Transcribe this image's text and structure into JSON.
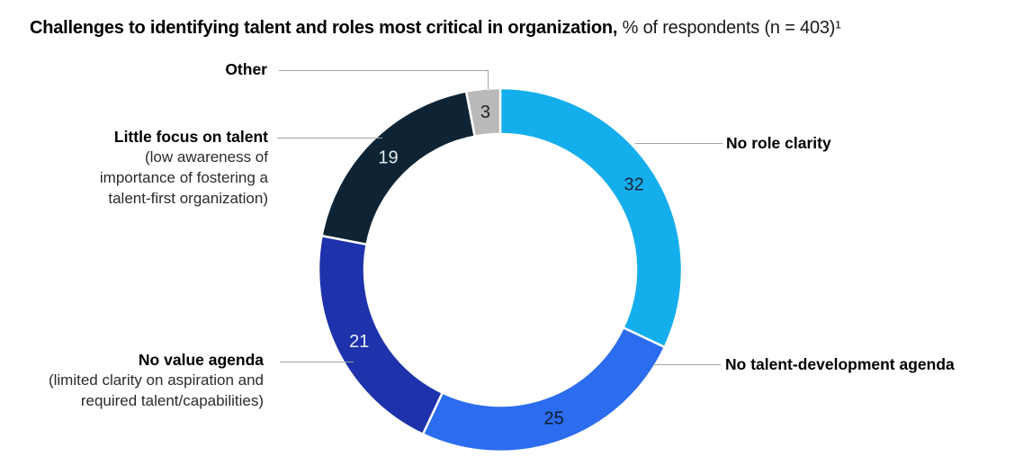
{
  "chart_data": {
    "type": "donut",
    "title_bold": "Challenges to identifying talent and roles most critical in organization,",
    "title_regular": "% of respondents (n = 403)¹",
    "total": 100,
    "start_angle_deg": 0,
    "clockwise": true,
    "legend_position": "callout-labels",
    "segments": [
      {
        "label": "No role clarity",
        "value": 32,
        "color": "#15AEEC",
        "value_color": "#16273B"
      },
      {
        "label": "No talent-development agenda",
        "value": 25,
        "color": "#2C6CEF",
        "value_color": "#101C33"
      },
      {
        "label": "No value agenda",
        "value": 21,
        "color": "#1E32AC",
        "value_color": "#EAF0F5"
      },
      {
        "label": "Little focus on talent",
        "value": 19,
        "color": "#0E2434",
        "value_color": "#E6ECF0"
      },
      {
        "label": "Other",
        "value": 3,
        "color": "#B9B9B9",
        "value_color": "#222222"
      }
    ]
  },
  "callouts": {
    "little_focus_sub": [
      "(low awareness of",
      "importance of fostering a",
      "talent-first organization)"
    ],
    "no_value_sub": [
      "(limited clarity on aspiration and",
      "required talent/capabilities)"
    ]
  },
  "colors": {
    "leader_line": "#A3A3A3",
    "background": "#FFFFFF",
    "title_text": "#000000"
  }
}
